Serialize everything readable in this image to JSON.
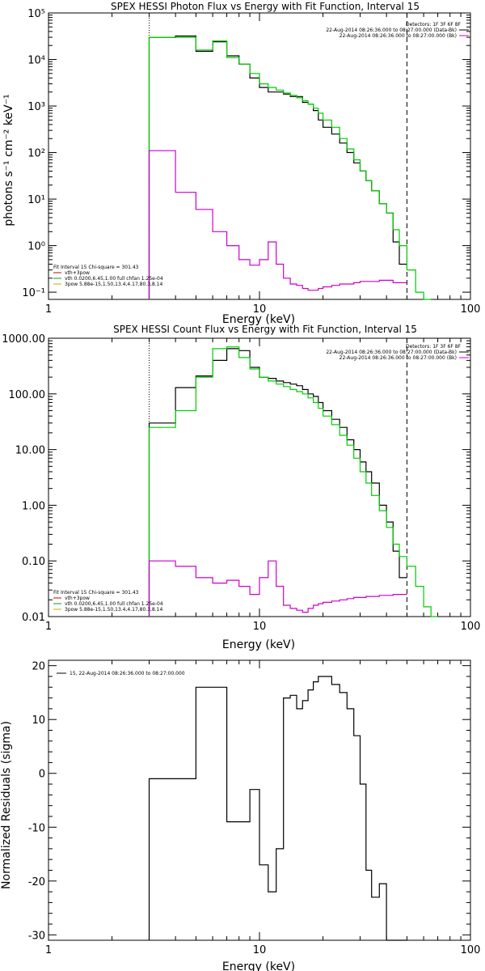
{
  "chart_data": [
    {
      "type": "line",
      "title": "SPEX HESSI Photon Flux vs Energy with Fit Function, Interval 15",
      "xlabel": "Energy (keV)",
      "ylabel": "photons s⁻¹ cm⁻² keV⁻¹",
      "xscale": "log",
      "yscale": "log",
      "xlim": [
        1,
        100
      ],
      "ylim": [
        0.07,
        100000
      ],
      "xtick_labels": [
        "1",
        "10",
        "100"
      ],
      "ytick_labels": [
        "10⁻¹",
        "10⁰",
        "10¹",
        "10²",
        "10³",
        "10⁴",
        "10⁵"
      ],
      "legend_title": "Detectors: 1F 3F 6F 8F",
      "legend_entries": [
        {
          "text": "22-Aug-2014 08:26:36.000 to 08:27:00.000 (Data-Bk)",
          "color": "#000000"
        },
        {
          "text": "22-Aug-2014 08:26:36.000 to 08:27:00.000 (Bk)",
          "color": "#cc00cc"
        }
      ],
      "fit_lines": [
        {
          "text": "Fit Interval 15  Chi-square = 301.43",
          "color": "#000000"
        },
        {
          "text": "vth+3pow",
          "color": "#cc0000"
        },
        {
          "text": "vth 0.0200,6.45,1.00  full chfan 1.25e-04",
          "color": "#00aa00"
        },
        {
          "text": "3pow 5.88e-15,1.50,13.4,4.17,80.3,8.14",
          "color": "#ccaa00"
        }
      ],
      "vlines": [
        {
          "x": 3,
          "style": "dotted"
        },
        {
          "x": 50,
          "style": "dashed"
        }
      ],
      "edges": [
        3,
        4,
        5,
        6,
        7,
        8,
        9,
        10,
        11,
        12,
        13,
        14,
        15,
        16,
        17,
        18,
        19,
        20,
        22,
        24,
        26,
        28,
        30,
        32,
        34,
        37,
        40,
        43,
        46,
        50,
        55,
        60,
        65,
        70
      ],
      "series": [
        {
          "name": "22-Aug-2014 08:26:36.000 to 08:27:00.000 (Data-Bk)",
          "color": "#000000",
          "values": [
            30000,
            32000,
            15000,
            24000,
            12000,
            8000,
            4000,
            2500,
            2000,
            2000,
            1800,
            1600,
            1600,
            1200,
            1100,
            800,
            500,
            350,
            250,
            160,
            100,
            60,
            40,
            25,
            15,
            8,
            5,
            1.2,
            0.4
          ]
        },
        {
          "name": "vth+3pow",
          "color": "#00cc00",
          "values": [
            30000,
            30000,
            16000,
            25000,
            11000,
            8000,
            5000,
            3000,
            2500,
            2200,
            1900,
            1700,
            1500,
            1300,
            1100,
            900,
            700,
            500,
            350,
            200,
            120,
            70,
            40,
            25,
            15,
            8,
            5,
            2.2,
            1,
            0.3,
            0.1,
            0.06
          ]
        },
        {
          "name": "22-Aug-2014 08:26:36.000 to 08:27:00.000 (Bk)",
          "color": "#cc00cc",
          "values": [
            110,
            14,
            6,
            2,
            1,
            0.5,
            0.38,
            0.5,
            1.2,
            0.4,
            0.2,
            0.15,
            0.14,
            0.12,
            0.11,
            0.11,
            0.12,
            0.13,
            0.14,
            0.15,
            0.15,
            0.16,
            0.17,
            0.17,
            0.17,
            0.18,
            0.18,
            0.16,
            0.16
          ]
        }
      ]
    },
    {
      "type": "line",
      "title": "SPEX HESSI Count Flux vs Energy with Fit Function, Interval 15",
      "xlabel": "Energy (keV)",
      "ylabel": "",
      "xscale": "log",
      "yscale": "log",
      "xlim": [
        1,
        100
      ],
      "ylim": [
        0.01,
        1000
      ],
      "xtick_labels": [
        "1",
        "10",
        "100"
      ],
      "ytick_labels": [
        "0.01",
        "0.10",
        "1.00",
        "10.00",
        "100.00",
        "1000.00"
      ],
      "legend_title": "Detectors: 1F 3F 6F 8F",
      "legend_entries": [
        {
          "text": "22-Aug-2014 08:26:36.000 to 08:27:00.000 (Data-Bk)",
          "color": "#000000"
        },
        {
          "text": "22-Aug-2014 08:26:36.000 to 08:27:00.000 (Bk)",
          "color": "#cc00cc"
        }
      ],
      "fit_lines": [
        {
          "text": "Fit Interval 15  Chi-square = 301.43",
          "color": "#000000"
        },
        {
          "text": "vth+3pow",
          "color": "#cc0000"
        },
        {
          "text": "vth 0.0200,6.45,1.00  full chfan 1.25e-04",
          "color": "#00aa00"
        },
        {
          "text": "3pow 5.88e-15,1.50,13.4,4.17,80.3,8.14",
          "color": "#ccaa00"
        }
      ],
      "vlines": [
        {
          "x": 3,
          "style": "dotted"
        },
        {
          "x": 50,
          "style": "dashed"
        }
      ],
      "edges": [
        3,
        4,
        5,
        6,
        7,
        8,
        9,
        10,
        11,
        12,
        13,
        14,
        15,
        16,
        17,
        18,
        19,
        20,
        22,
        24,
        26,
        28,
        30,
        32,
        34,
        37,
        40,
        43,
        46,
        50,
        55,
        60,
        65,
        70
      ],
      "series": [
        {
          "name": "22-Aug-2014 08:26:36.000 to 08:27:00.000 (Data-Bk)",
          "color": "#000000",
          "values": [
            30,
            130,
            210,
            400,
            650,
            600,
            300,
            200,
            190,
            170,
            160,
            150,
            140,
            120,
            100,
            90,
            70,
            50,
            35,
            25,
            15,
            10,
            6,
            4,
            2.5,
            1,
            0.5,
            0.15,
            0.05
          ]
        },
        {
          "name": "vth+3pow",
          "color": "#00cc00",
          "values": [
            25,
            50,
            200,
            650,
            700,
            450,
            280,
            200,
            170,
            150,
            135,
            120,
            110,
            100,
            85,
            70,
            55,
            40,
            28,
            18,
            12,
            7,
            4,
            2.5,
            1.5,
            0.8,
            0.4,
            0.2,
            0.12,
            0.08,
            0.035,
            0.015,
            0.008
          ]
        },
        {
          "name": "22-Aug-2014 08:26:36.000 to 08:27:00.000 (Bk)",
          "color": "#cc00cc",
          "values": [
            0.1,
            0.08,
            0.05,
            0.04,
            0.045,
            0.035,
            0.025,
            0.05,
            0.1,
            0.035,
            0.016,
            0.014,
            0.013,
            0.012,
            0.014,
            0.016,
            0.017,
            0.018,
            0.019,
            0.02,
            0.021,
            0.022,
            0.022,
            0.023,
            0.023,
            0.024,
            0.024,
            0.025,
            0.025
          ]
        }
      ]
    },
    {
      "type": "line",
      "title": "",
      "xlabel": "Energy (keV)",
      "ylabel": "Normalized Residuals (sigma)",
      "xscale": "log",
      "yscale": "linear",
      "xlim": [
        1,
        100
      ],
      "ylim": [
        -31,
        21
      ],
      "xtick_labels": [
        "1",
        "10",
        "100"
      ],
      "ytick_labels": [
        "-30",
        "-20",
        "-10",
        "0",
        "10",
        "20"
      ],
      "legend_entries": [
        {
          "text": "15, 22-Aug-2014 08:26:36.000 to 08:27:00.000",
          "color": "#000000"
        }
      ],
      "edges": [
        3,
        4,
        5,
        6,
        7,
        8,
        9,
        10,
        11,
        12,
        13,
        14,
        15,
        16,
        17,
        18,
        19,
        20,
        22,
        24,
        26,
        28,
        30,
        32,
        34,
        37,
        40,
        43,
        46,
        50
      ],
      "series": [
        {
          "name": "15, 22-Aug-2014 08:26:36.000 to 08:27:00.000",
          "color": "#000000",
          "values": [
            -1,
            -1,
            16,
            16,
            -9,
            -9,
            -3,
            -17,
            -22,
            -14,
            14,
            14.5,
            12,
            13.5,
            15.5,
            17,
            18,
            18,
            16.5,
            15,
            12,
            7,
            -2,
            -18,
            -23,
            -20.5,
            -31,
            -31,
            -31
          ]
        }
      ]
    }
  ]
}
